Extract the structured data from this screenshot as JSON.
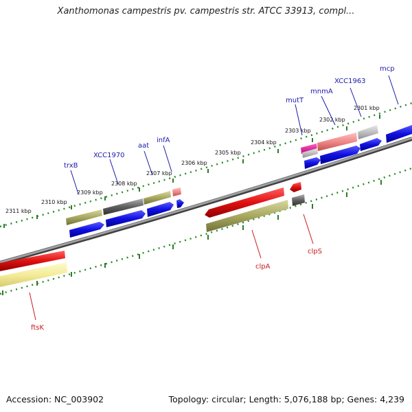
{
  "header": {
    "title": "Xanthomonas campestris pv. campestris str. ATCC 33913, compl..."
  },
  "footer": {
    "accession": "Accession: NC_003902",
    "stats": "Topology: circular; Length: 5,076,188 bp; Genes: 4,239"
  },
  "scale_labels": [
    "2301 kbp",
    "2302 kbp",
    "2303 kbp",
    "2304 kbp",
    "2305 kbp",
    "2306 kbp",
    "2307 kbp",
    "2308 kbp",
    "2309 kbp",
    "2310 kbp",
    "2311 kbp"
  ],
  "gene_labels": [
    {
      "id": "mcp",
      "text": "mcp",
      "color": "#1a1aa8"
    },
    {
      "id": "xcc1963",
      "text": "XCC1963",
      "color": "#1a1aa8"
    },
    {
      "id": "mnma",
      "text": "mnmA",
      "color": "#1a1aa8"
    },
    {
      "id": "mutt",
      "text": "mutT",
      "color": "#1a1aa8"
    },
    {
      "id": "infa",
      "text": "infA",
      "color": "#1a1aa8"
    },
    {
      "id": "aat",
      "text": "aat",
      "color": "#1a1aa8"
    },
    {
      "id": "xcc1970",
      "text": "XCC1970",
      "color": "#1a1aa8"
    },
    {
      "id": "trxb",
      "text": "trxB",
      "color": "#1a1aa8"
    },
    {
      "id": "clpa",
      "text": "clpA",
      "color": "#c81a1a"
    },
    {
      "id": "clps",
      "text": "clpS",
      "color": "#c81a1a"
    },
    {
      "id": "ftsk",
      "text": "ftsK",
      "color": "#c81a1a"
    }
  ],
  "colors": {
    "cds_forward": "#1818e0",
    "gene_forward": "#a8a860",
    "cds_reverse": "#e01414",
    "gene_reverse": "#a8a860",
    "pseudo": "#606060",
    "backbone": "#808080",
    "scale": "#2a8a2a"
  }
}
